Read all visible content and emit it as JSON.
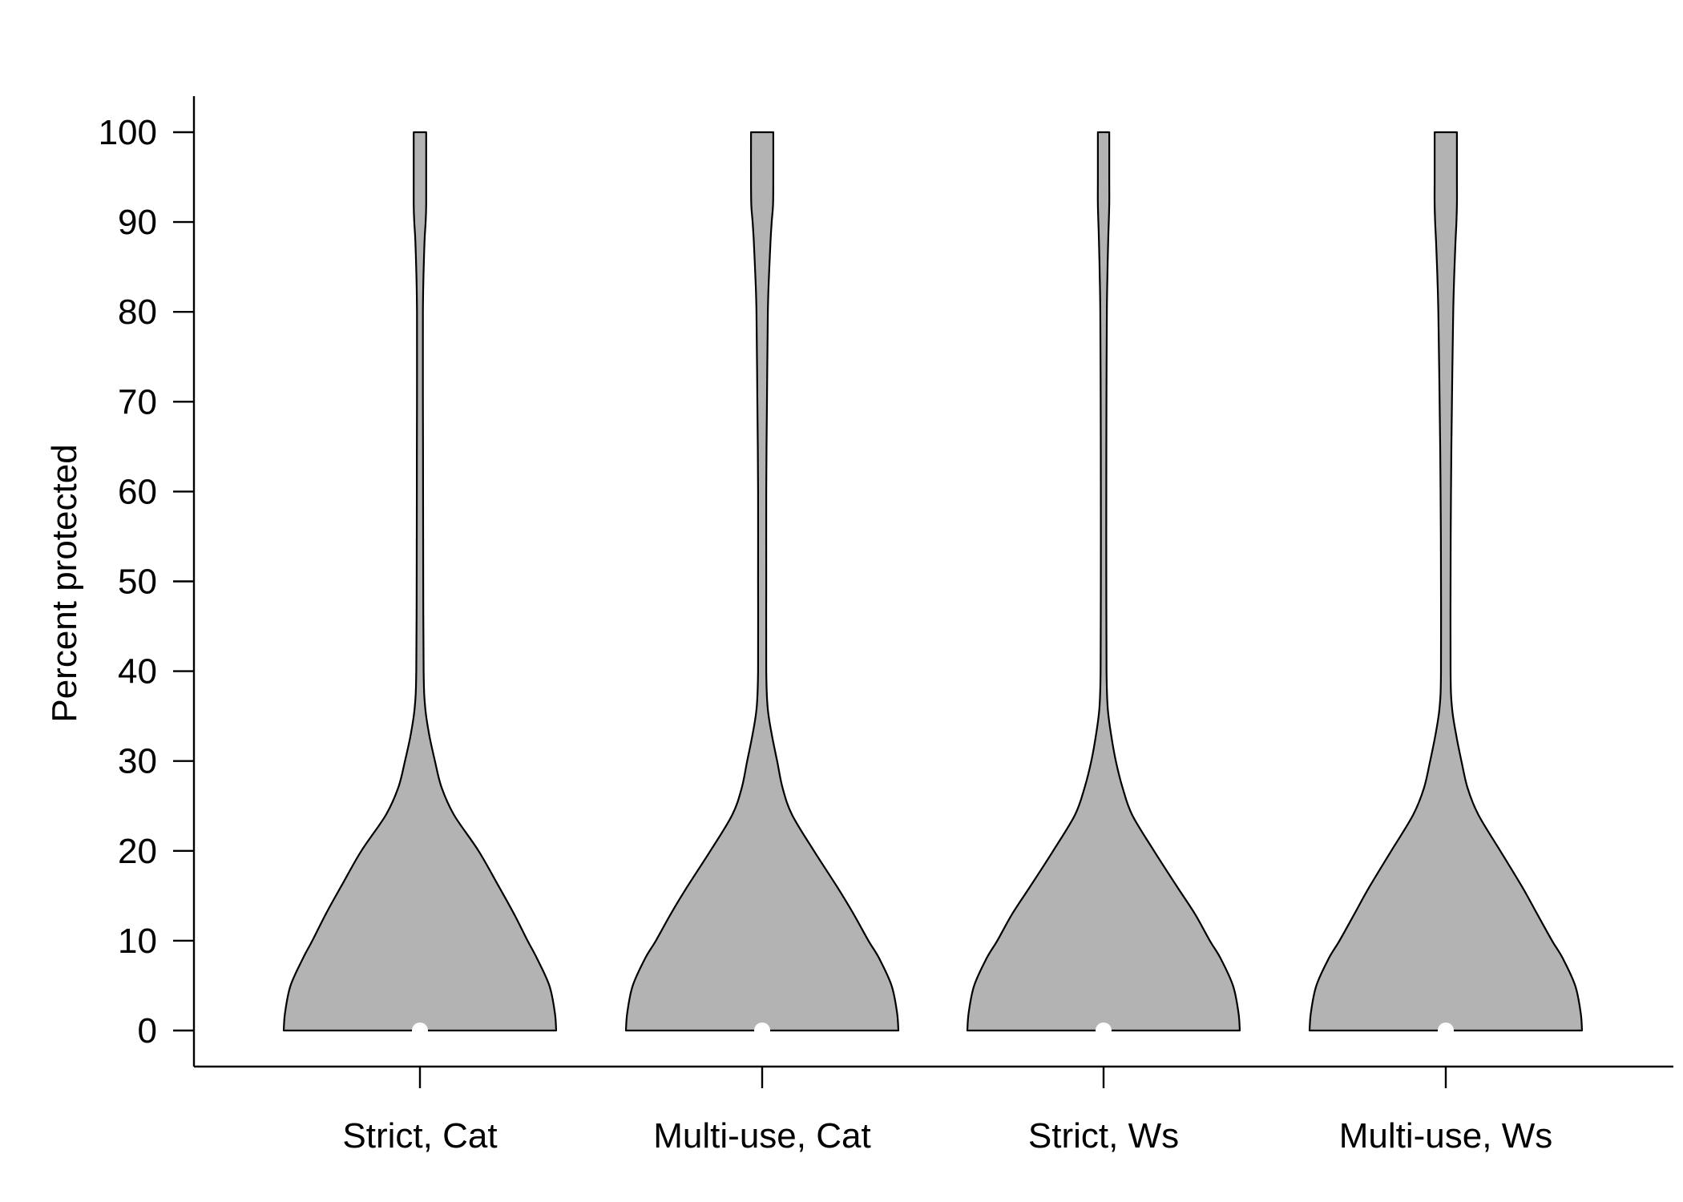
{
  "chart_data": {
    "type": "violin",
    "xlabel": "",
    "ylabel": "Percent protected",
    "ylim": [
      -4,
      104
    ],
    "yticks": [
      0,
      10,
      20,
      30,
      40,
      50,
      60,
      70,
      80,
      90,
      100
    ],
    "grid": false,
    "legend": "none",
    "fill_color": "#b3b3b3",
    "outline_color": "#000000",
    "median_color": "#ffffff",
    "categories": [
      "Strict, Cat",
      "Multi-use, Cat",
      "Strict, Ws",
      "Multi-use, Ws"
    ],
    "density_y": [
      0,
      2,
      5,
      8,
      10,
      13,
      16,
      20,
      24,
      27,
      30,
      33,
      36,
      40,
      50,
      60,
      70,
      80,
      84,
      88,
      90,
      92,
      95,
      100
    ],
    "series": [
      {
        "name": "Strict, Cat",
        "median": 0,
        "half_width": [
          1.0,
          0.99,
          0.95,
          0.86,
          0.79,
          0.69,
          0.58,
          0.43,
          0.25,
          0.16,
          0.11,
          0.067,
          0.038,
          0.027,
          0.024,
          0.023,
          0.022,
          0.022,
          0.026,
          0.034,
          0.042,
          0.046,
          0.046,
          0.046
        ]
      },
      {
        "name": "Multi-use, Cat",
        "median": 0,
        "half_width": [
          1.0,
          0.99,
          0.95,
          0.86,
          0.78,
          0.67,
          0.55,
          0.38,
          0.22,
          0.15,
          0.11,
          0.07,
          0.04,
          0.03,
          0.03,
          0.03,
          0.035,
          0.042,
          0.05,
          0.062,
          0.07,
          0.08,
          0.082,
          0.082
        ]
      },
      {
        "name": "Strict, Ws",
        "median": 0,
        "half_width": [
          1.0,
          0.99,
          0.95,
          0.86,
          0.78,
          0.67,
          0.54,
          0.37,
          0.21,
          0.14,
          0.09,
          0.055,
          0.03,
          0.022,
          0.02,
          0.02,
          0.021,
          0.024,
          0.028,
          0.034,
          0.038,
          0.042,
          0.042,
          0.042
        ]
      },
      {
        "name": "Multi-use, Ws",
        "median": 0,
        "half_width": [
          1.0,
          0.99,
          0.95,
          0.86,
          0.78,
          0.67,
          0.56,
          0.4,
          0.24,
          0.16,
          0.115,
          0.075,
          0.045,
          0.035,
          0.035,
          0.038,
          0.045,
          0.055,
          0.062,
          0.072,
          0.078,
          0.082,
          0.082,
          0.082
        ]
      }
    ]
  }
}
